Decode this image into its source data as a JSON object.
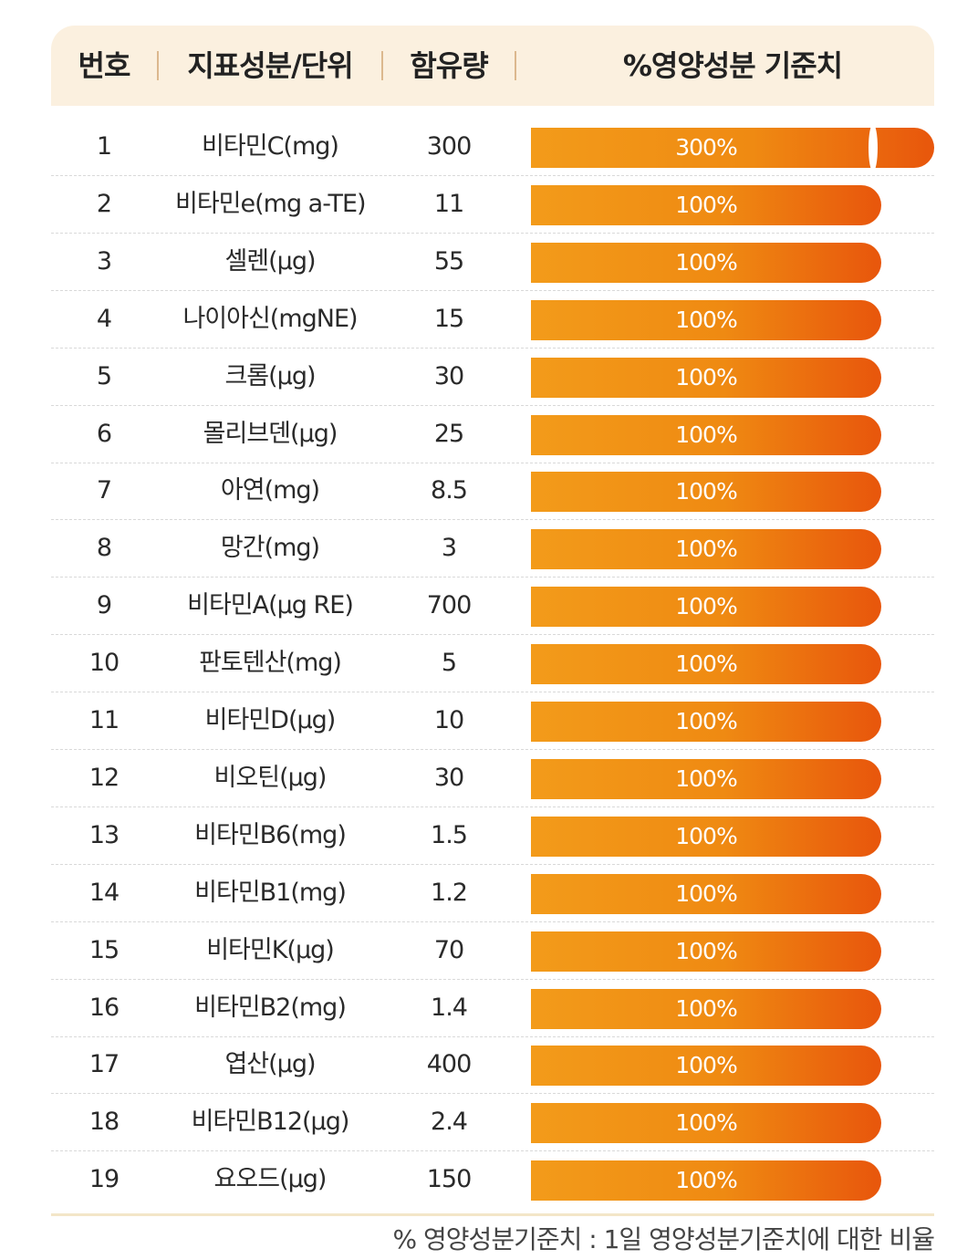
{
  "header": {
    "no": "번호",
    "name": "지표성분/단위",
    "amount": "함유량",
    "pct": "%영양성분 기준치"
  },
  "chart_data": {
    "type": "table",
    "columns": [
      "번호",
      "지표성분/단위",
      "함유량",
      "%영양성분 기준치"
    ],
    "rows": [
      {
        "no": "1",
        "name": "비타민C(mg)",
        "amount": "300",
        "pct": 300,
        "pct_label": "300%"
      },
      {
        "no": "2",
        "name": "비타민e(mg a-TE)",
        "amount": "11",
        "pct": 100,
        "pct_label": "100%"
      },
      {
        "no": "3",
        "name": "셀렌(μg)",
        "amount": "55",
        "pct": 100,
        "pct_label": "100%"
      },
      {
        "no": "4",
        "name": "나이아신(mgNE)",
        "amount": "15",
        "pct": 100,
        "pct_label": "100%"
      },
      {
        "no": "5",
        "name": "크롬(μg)",
        "amount": "30",
        "pct": 100,
        "pct_label": "100%"
      },
      {
        "no": "6",
        "name": "몰리브덴(μg)",
        "amount": "25",
        "pct": 100,
        "pct_label": "100%"
      },
      {
        "no": "7",
        "name": "아연(mg)",
        "amount": "8.5",
        "pct": 100,
        "pct_label": "100%"
      },
      {
        "no": "8",
        "name": "망간(mg)",
        "amount": "3",
        "pct": 100,
        "pct_label": "100%"
      },
      {
        "no": "9",
        "name": "비타민A(μg RE)",
        "amount": "700",
        "pct": 100,
        "pct_label": "100%"
      },
      {
        "no": "10",
        "name": "판토텐산(mg)",
        "amount": "5",
        "pct": 100,
        "pct_label": "100%"
      },
      {
        "no": "11",
        "name": "비타민D(μg)",
        "amount": "10",
        "pct": 100,
        "pct_label": "100%"
      },
      {
        "no": "12",
        "name": "비오틴(μg)",
        "amount": "30",
        "pct": 100,
        "pct_label": "100%"
      },
      {
        "no": "13",
        "name": "비타민B6(mg)",
        "amount": "1.5",
        "pct": 100,
        "pct_label": "100%"
      },
      {
        "no": "14",
        "name": "비타민B1(mg)",
        "amount": "1.2",
        "pct": 100,
        "pct_label": "100%"
      },
      {
        "no": "15",
        "name": "비타민K(μg)",
        "amount": "70",
        "pct": 100,
        "pct_label": "100%"
      },
      {
        "no": "16",
        "name": "비타민B2(mg)",
        "amount": "1.4",
        "pct": 100,
        "pct_label": "100%"
      },
      {
        "no": "17",
        "name": "엽산(μg)",
        "amount": "400",
        "pct": 100,
        "pct_label": "100%"
      },
      {
        "no": "18",
        "name": "비타민B12(μg)",
        "amount": "2.4",
        "pct": 100,
        "pct_label": "100%"
      },
      {
        "no": "19",
        "name": "요오드(μg)",
        "amount": "150",
        "pct": 100,
        "pct_label": "100%"
      }
    ]
  },
  "footnote": "% 영양성분기준치 : 1일 영양성분기준치에 대한 비율",
  "colors": {
    "header_bg": "#fbf0df",
    "bar_start": "#f39b1a",
    "bar_end": "#e8560c",
    "separator": "#dcb88e"
  }
}
